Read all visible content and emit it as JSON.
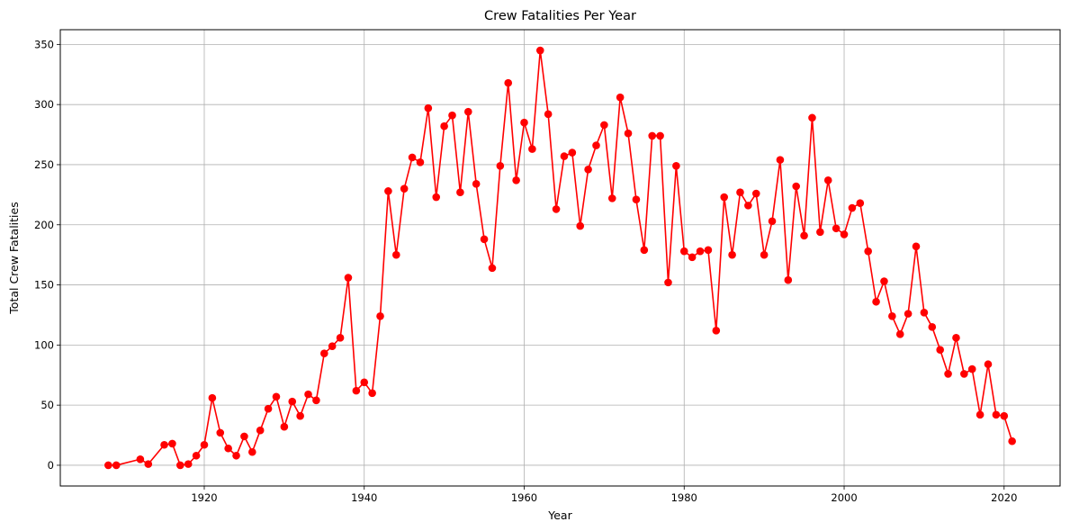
{
  "chart_data": {
    "type": "line",
    "title": "Crew Fatalities Per Year",
    "xlabel": "Year",
    "ylabel": "Total Crew Fatalities",
    "xlim": [
      1902,
      2027
    ],
    "ylim": [
      -17.25,
      362.25
    ],
    "xticks": [
      1920,
      1940,
      1960,
      1980,
      2000,
      2020
    ],
    "yticks": [
      0,
      50,
      100,
      150,
      200,
      250,
      300,
      350
    ],
    "grid": true,
    "legend": "none",
    "color": "#ff0000",
    "marker": "circle",
    "series": [
      {
        "x": [
          1908,
          1909,
          1912,
          1913,
          1915,
          1916,
          1917,
          1918,
          1919,
          1920,
          1921,
          1922,
          1923,
          1924,
          1925,
          1926,
          1927,
          1928,
          1929,
          1930,
          1931,
          1932,
          1933,
          1934,
          1935,
          1936,
          1937,
          1938,
          1939,
          1940,
          1941,
          1942,
          1943,
          1944,
          1945,
          1946,
          1947,
          1948,
          1949,
          1950,
          1951,
          1952,
          1953,
          1954,
          1955,
          1956,
          1957,
          1958,
          1959,
          1960,
          1961,
          1962,
          1963,
          1964,
          1965,
          1966,
          1967,
          1968,
          1969,
          1970,
          1971,
          1972,
          1973,
          1974,
          1975,
          1976,
          1977,
          1978,
          1979,
          1980,
          1981,
          1982,
          1983,
          1984,
          1985,
          1986,
          1987,
          1988,
          1989,
          1990,
          1991,
          1992,
          1993,
          1994,
          1995,
          1996,
          1997,
          1998,
          1999,
          2000,
          2001,
          2002,
          2003,
          2004,
          2005,
          2006,
          2007,
          2008,
          2009,
          2010,
          2011,
          2012,
          2013,
          2014,
          2015,
          2016,
          2017,
          2018,
          2019,
          2020,
          2021
        ],
        "y": [
          0,
          0,
          5,
          1,
          17,
          18,
          0,
          1,
          8,
          17,
          56,
          27,
          14,
          8,
          24,
          11,
          29,
          47,
          57,
          32,
          53,
          41,
          59,
          54,
          93,
          99,
          106,
          156,
          62,
          69,
          60,
          124,
          228,
          175,
          230,
          256,
          252,
          297,
          223,
          282,
          291,
          227,
          294,
          234,
          188,
          164,
          249,
          318,
          237,
          285,
          263,
          345,
          292,
          213,
          257,
          260,
          199,
          246,
          266,
          283,
          222,
          306,
          276,
          221,
          179,
          274,
          274,
          152,
          249,
          178,
          173,
          178,
          179,
          112,
          223,
          175,
          227,
          216,
          226,
          175,
          203,
          254,
          154,
          232,
          191,
          289,
          194,
          237,
          197,
          192,
          214,
          218,
          178,
          136,
          153,
          124,
          109,
          126,
          182,
          127,
          115,
          96,
          76,
          106,
          76,
          80,
          42,
          84,
          42,
          41,
          20
        ]
      }
    ]
  }
}
